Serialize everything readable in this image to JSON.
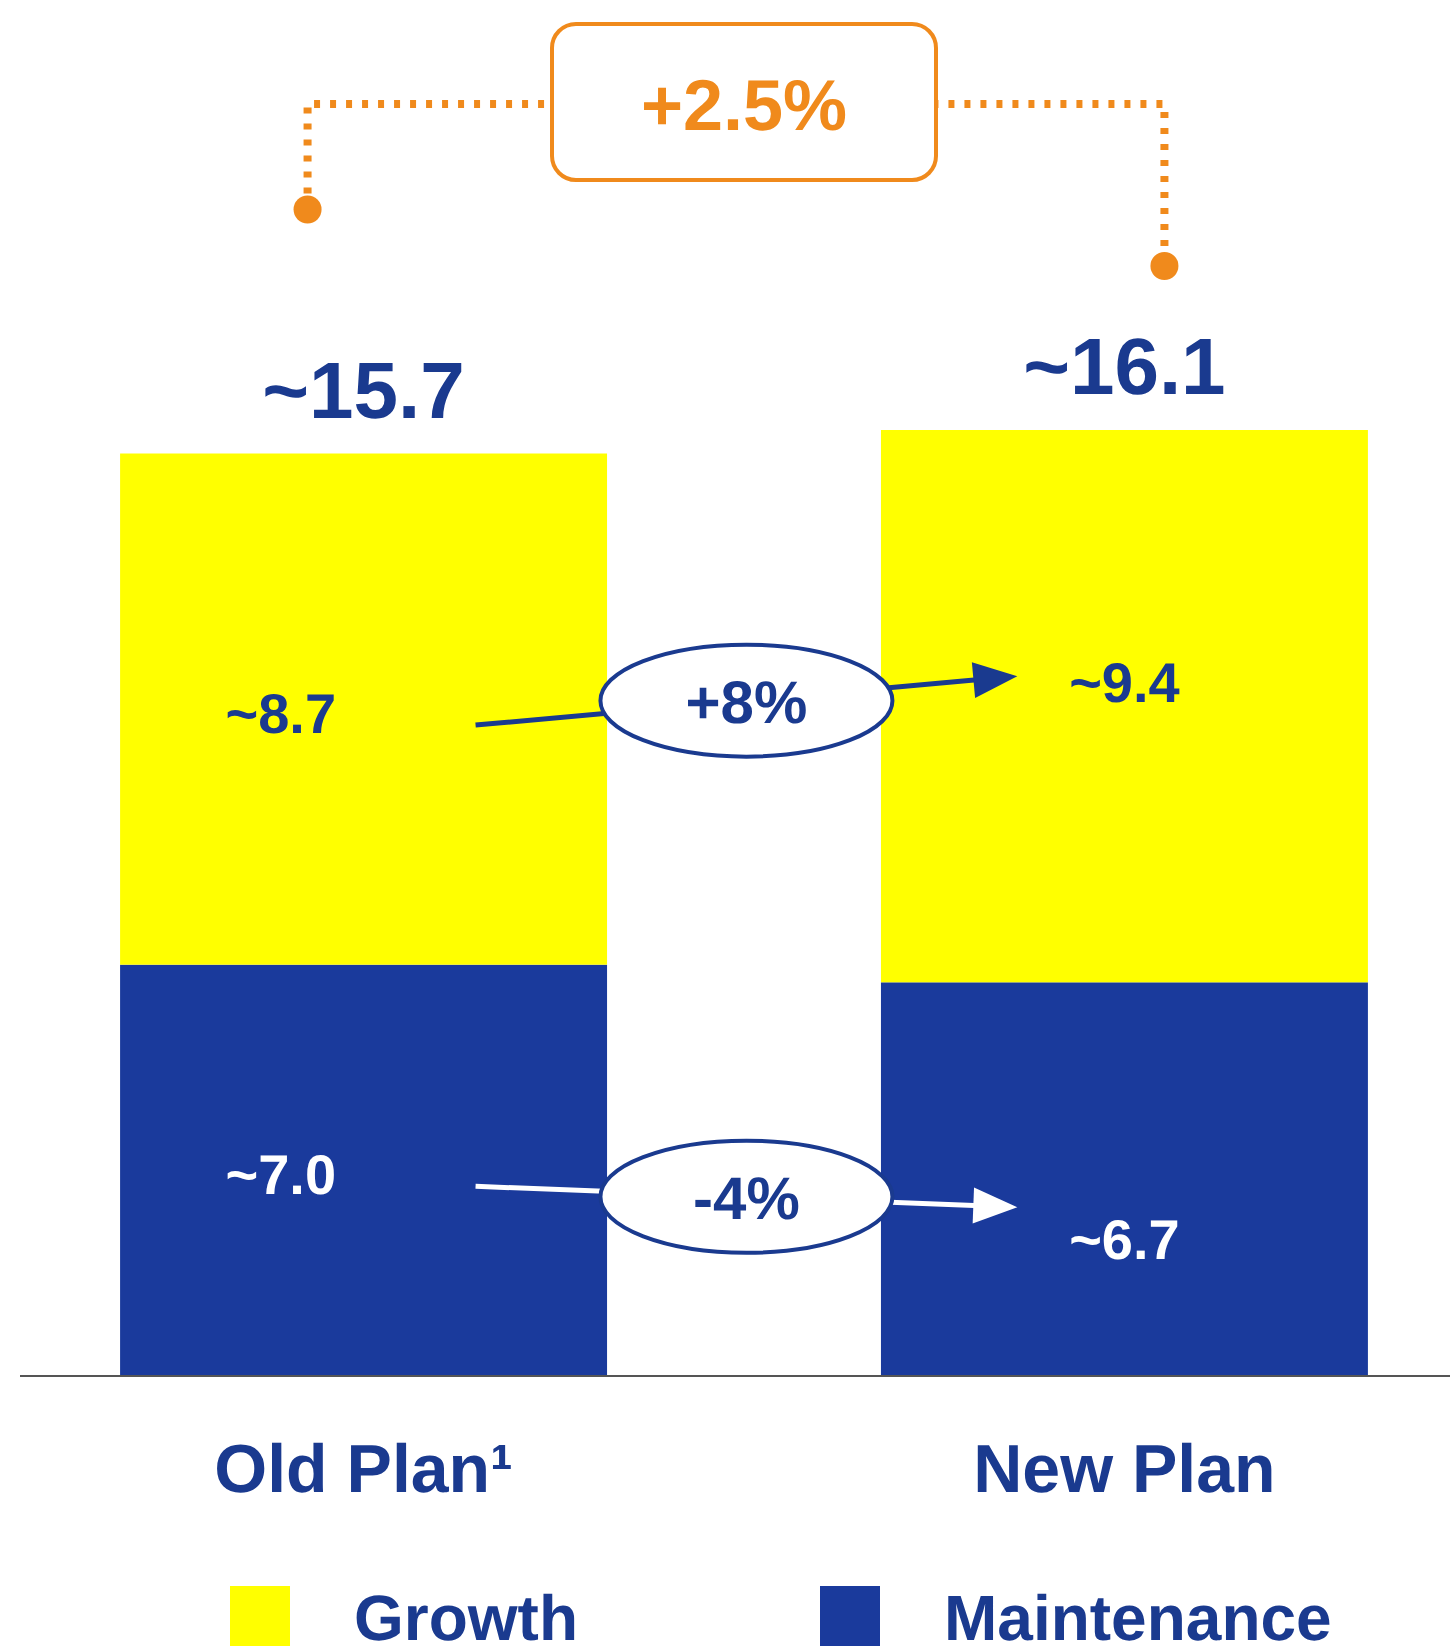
{
  "chart_data": {
    "type": "bar",
    "stacked": true,
    "categories": [
      "Old Plan¹",
      "New Plan"
    ],
    "series": [
      {
        "name": "Maintenance",
        "color": "#1a3a9c",
        "values": [
          7.0,
          6.7
        ],
        "value_labels": [
          "~7.0",
          "~6.7"
        ]
      },
      {
        "name": "Growth",
        "color": "#ffff00",
        "values": [
          8.7,
          9.4
        ],
        "value_labels": [
          "~8.7",
          "~9.4"
        ]
      }
    ],
    "totals": [
      "~15.7",
      "~16.1"
    ],
    "annotations": [
      "+2.5%",
      "+8%",
      "-4%"
    ],
    "legend": "bottom"
  }
}
